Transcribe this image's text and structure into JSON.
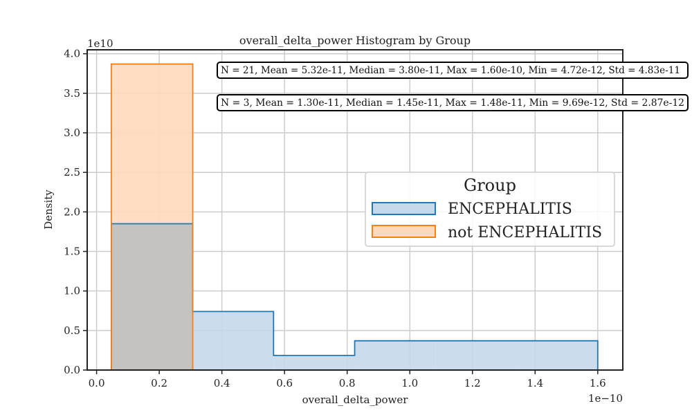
{
  "chart_data": {
    "type": "histogram",
    "title": "overall_delta_power Histogram by Group",
    "xlabel": "overall_delta_power",
    "ylabel": "Density",
    "x_scale_label": "1e−10",
    "y_scale_label": "1e10",
    "xlim": [
      -0.03,
      1.68
    ],
    "ylim": [
      0,
      4.05
    ],
    "xticks": [
      0.0,
      0.2,
      0.4,
      0.6,
      0.8,
      1.0,
      1.2,
      1.4,
      1.6
    ],
    "xtick_labels": [
      "0.0",
      "0.2",
      "0.4",
      "0.6",
      "0.8",
      "1.0",
      "1.2",
      "1.4",
      "1.6"
    ],
    "yticks": [
      0.0,
      0.5,
      1.0,
      1.5,
      2.0,
      2.5,
      3.0,
      3.5,
      4.0
    ],
    "ytick_labels": [
      "0.0",
      "0.5",
      "1.0",
      "1.5",
      "2.0",
      "2.5",
      "3.0",
      "3.5",
      "4.0"
    ],
    "grid": true,
    "legend": {
      "title": "Group",
      "placement": "center-right"
    },
    "series": [
      {
        "name": "ENCEPHALITIS",
        "color": "#1f77b4",
        "fill": "#c5d9eb",
        "bins": [
          {
            "x0": 0.047,
            "x1": 0.307,
            "value": 1.85
          },
          {
            "x0": 0.307,
            "x1": 0.565,
            "value": 0.74
          },
          {
            "x0": 0.565,
            "x1": 0.824,
            "value": 0.185
          },
          {
            "x0": 0.824,
            "x1": 1.083,
            "value": 0.37
          },
          {
            "x0": 1.083,
            "x1": 1.342,
            "value": 0.37
          },
          {
            "x0": 1.342,
            "x1": 1.6,
            "value": 0.37
          }
        ]
      },
      {
        "name": "not ENCEPHALITIS",
        "color": "#ff7f0e",
        "fill": "#ffd9bd",
        "bins": [
          {
            "x0": 0.047,
            "x1": 0.307,
            "value": 3.87
          }
        ]
      }
    ],
    "annotations": [
      {
        "text": "N = 21, Mean = 5.32e-11, Median = 3.80e-11, Max = 1.60e-10, Min = 4.72e-12, Std = 4.83e-11"
      },
      {
        "text": "N = 3, Mean = 1.30e-11, Median = 1.45e-11, Max = 1.48e-11, Min = 9.69e-12, Std = 2.87e-12"
      }
    ]
  }
}
